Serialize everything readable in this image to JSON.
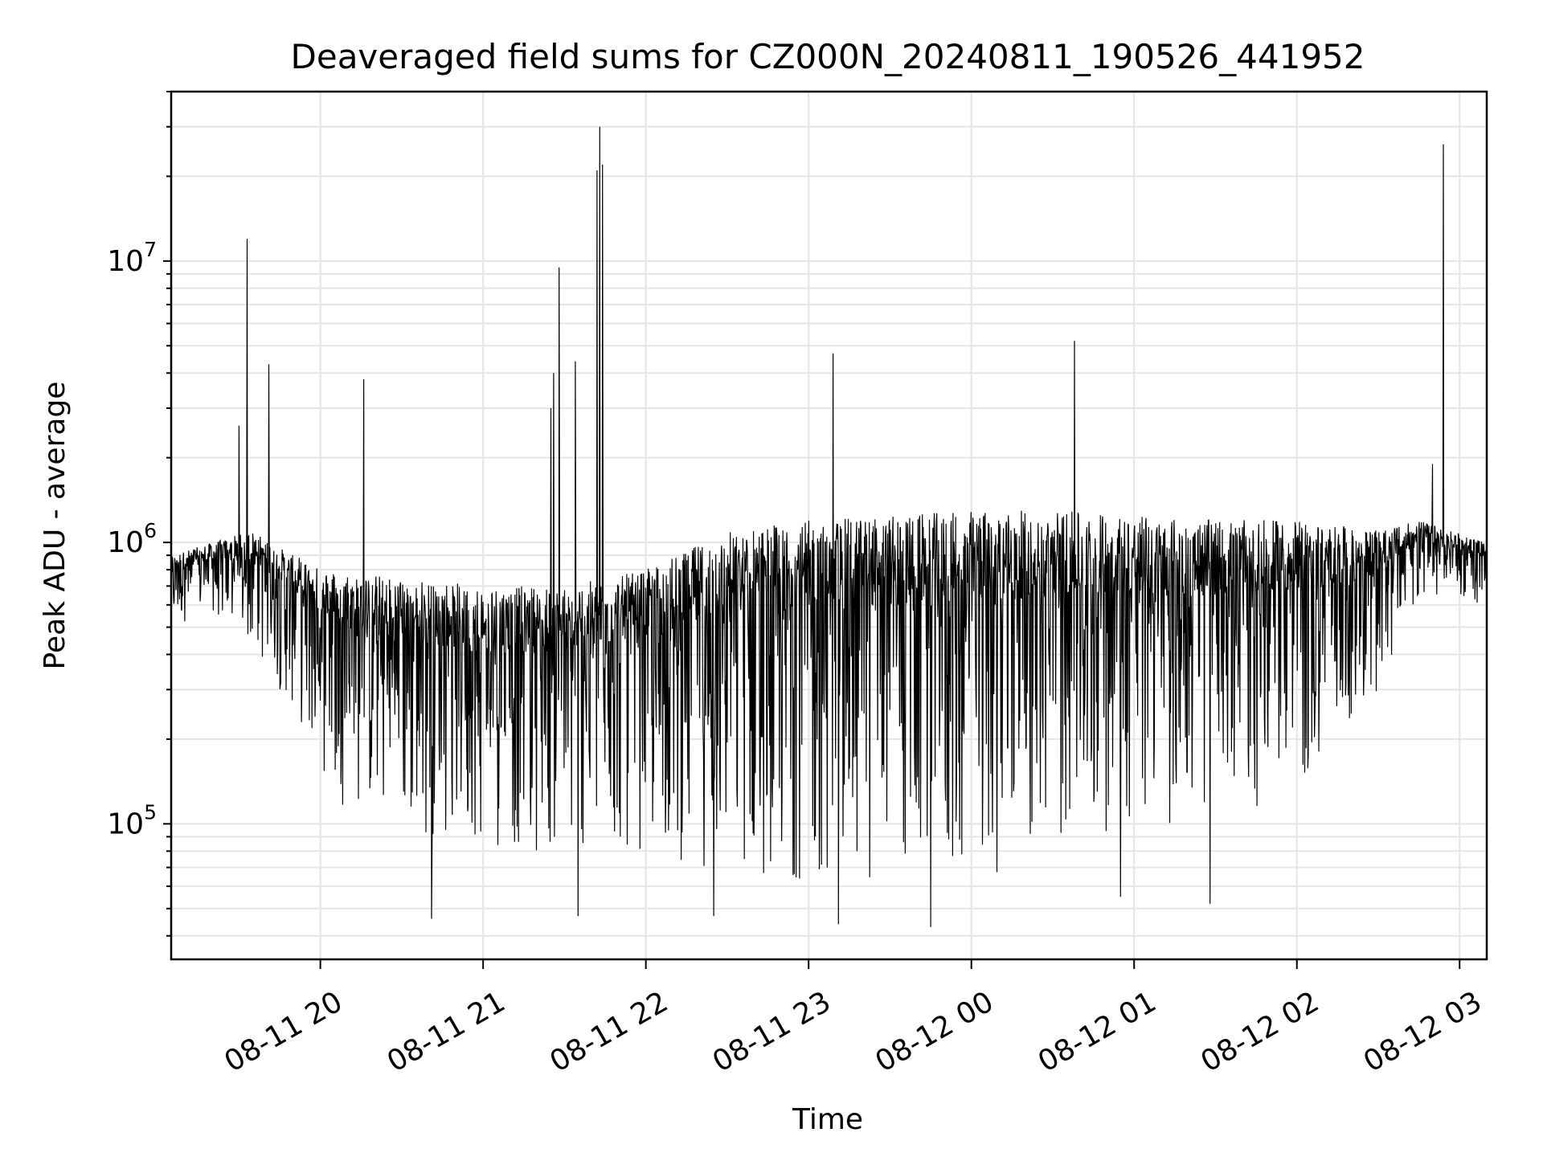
{
  "chart_data": {
    "type": "line",
    "title": "Deaveraged field sums for CZ000N_20240811_190526_441952",
    "xlabel": "Time",
    "ylabel": "Peak ADU - average",
    "yscale": "log",
    "ylim": [
      33000,
      40000000
    ],
    "xlim": [
      "2024-08-11 19:05",
      "2024-08-12 03:10"
    ],
    "grid": true,
    "line_color": "#000000",
    "grid_color": "#e6e6e6",
    "x_ticks": [
      "08-11 20",
      "08-11 21",
      "08-11 22",
      "08-11 23",
      "08-12 00",
      "08-12 01",
      "08-12 02",
      "08-12 03"
    ],
    "x_tick_times": [
      "2024-08-11 20:00",
      "2024-08-11 21:00",
      "2024-08-11 22:00",
      "2024-08-11 23:00",
      "2024-08-12 00:00",
      "2024-08-12 01:00",
      "2024-08-12 02:00",
      "2024-08-12 03:00"
    ],
    "y_ticks": [
      {
        "base": "10",
        "exp": "5",
        "value": 100000
      },
      {
        "base": "10",
        "exp": "6",
        "value": 1000000
      },
      {
        "base": "10",
        "exp": "7",
        "value": 10000000
      }
    ],
    "envelope": {
      "x": [
        "2024-08-11 19:05",
        "2024-08-11 19:20",
        "2024-08-11 19:35",
        "2024-08-11 19:50",
        "2024-08-11 20:05",
        "2024-08-11 20:30",
        "2024-08-11 21:00",
        "2024-08-11 21:30",
        "2024-08-11 22:00",
        "2024-08-11 22:30",
        "2024-08-11 23:00",
        "2024-08-11 23:30",
        "2024-08-12 00:00",
        "2024-08-12 00:30",
        "2024-08-12 01:00",
        "2024-08-12 01:30",
        "2024-08-12 02:00",
        "2024-08-12 02:30",
        "2024-08-12 02:45",
        "2024-08-12 03:10"
      ],
      "high": [
        900000,
        1000000,
        1100000,
        900000,
        800000,
        750000,
        700000,
        700000,
        800000,
        1100000,
        1200000,
        1250000,
        1300000,
        1300000,
        1250000,
        1200000,
        1200000,
        1100000,
        1200000,
        1000000
      ],
      "low": [
        500000,
        550000,
        400000,
        250000,
        120000,
        90000,
        80000,
        75000,
        75000,
        65000,
        60000,
        60000,
        60000,
        80000,
        90000,
        100000,
        120000,
        250000,
        600000,
        600000
      ]
    },
    "spikes": [
      {
        "x": "2024-08-11 19:30",
        "y": 2600000
      },
      {
        "x": "2024-08-11 19:33",
        "y": 12000000
      },
      {
        "x": "2024-08-11 19:41",
        "y": 4300000
      },
      {
        "x": "2024-08-11 20:16",
        "y": 3800000
      },
      {
        "x": "2024-08-11 21:25",
        "y": 3000000
      },
      {
        "x": "2024-08-11 21:26",
        "y": 4000000
      },
      {
        "x": "2024-08-11 21:28",
        "y": 9500000
      },
      {
        "x": "2024-08-11 21:34",
        "y": 4400000
      },
      {
        "x": "2024-08-11 21:42",
        "y": 21000000
      },
      {
        "x": "2024-08-11 21:43",
        "y": 30000000
      },
      {
        "x": "2024-08-11 21:44",
        "y": 22000000
      },
      {
        "x": "2024-08-11 23:09",
        "y": 4700000
      },
      {
        "x": "2024-08-12 00:38",
        "y": 5200000
      },
      {
        "x": "2024-08-12 02:54",
        "y": 26000000
      },
      {
        "x": "2024-08-12 02:50",
        "y": 1900000
      }
    ],
    "dips": [
      {
        "x": "2024-08-11 20:41",
        "y": 46000
      },
      {
        "x": "2024-08-11 21:35",
        "y": 47000
      },
      {
        "x": "2024-08-11 22:25",
        "y": 47000
      },
      {
        "x": "2024-08-11 23:11",
        "y": 44000
      },
      {
        "x": "2024-08-11 23:45",
        "y": 43000
      },
      {
        "x": "2024-08-12 00:55",
        "y": 55000
      },
      {
        "x": "2024-08-12 01:28",
        "y": 52000
      }
    ]
  }
}
